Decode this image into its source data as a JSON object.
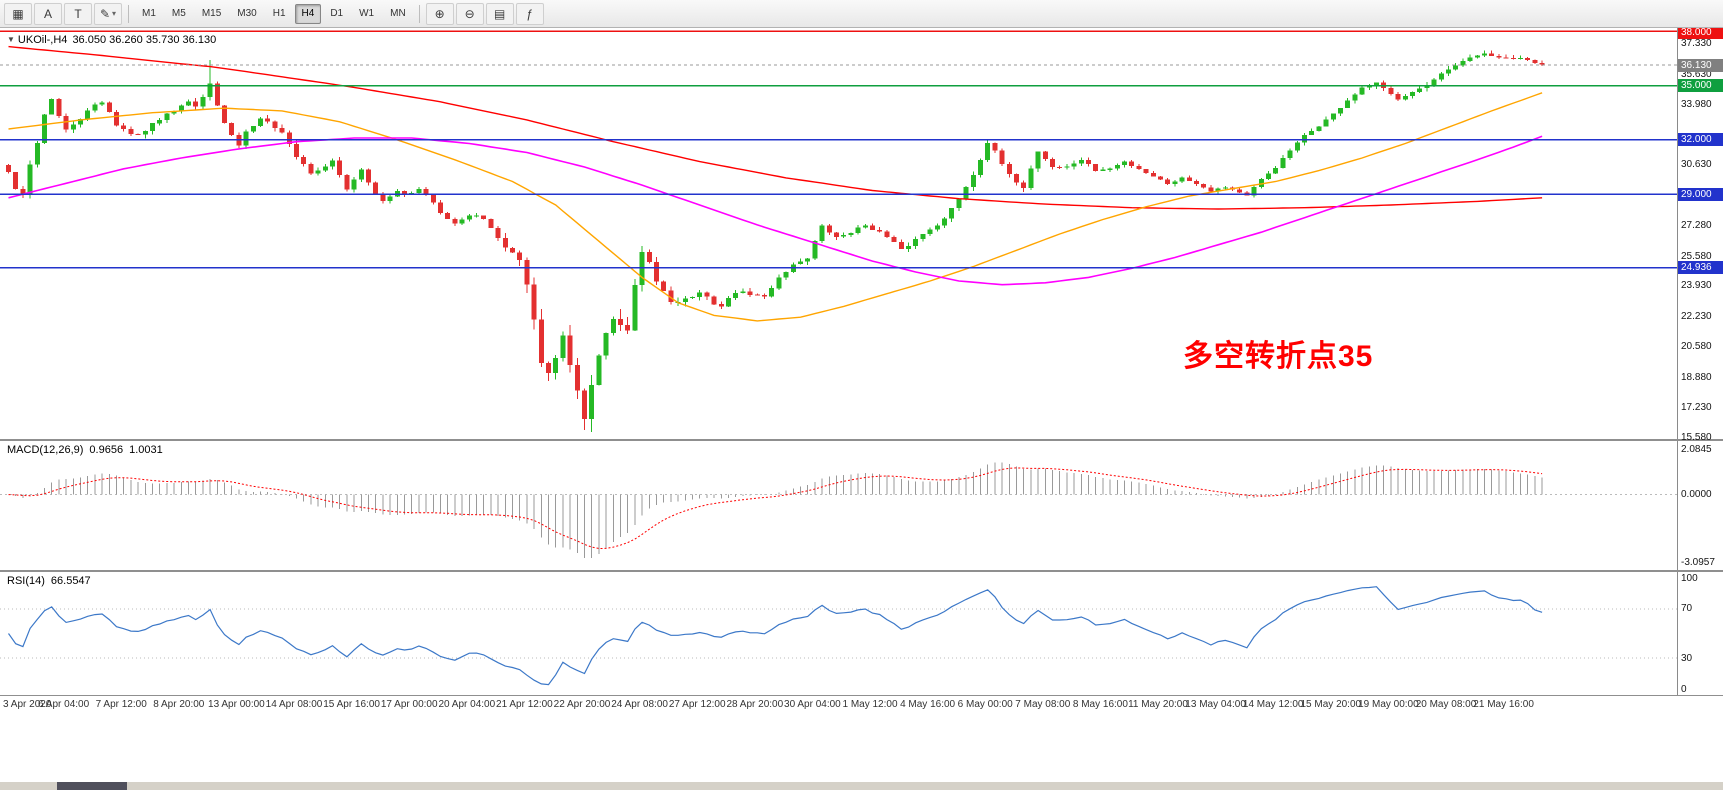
{
  "toolbar": {
    "timeframes": [
      "M1",
      "M5",
      "M15",
      "M30",
      "H1",
      "H4",
      "D1",
      "W1",
      "MN"
    ],
    "active_timeframe": "H4"
  },
  "icons": {
    "charts": "▦",
    "cursor": "A",
    "text": "T",
    "draw": "✎",
    "dropdown": "▾",
    "zoom_in": "⊕",
    "zoom_out": "⊖",
    "windows": "▤",
    "indicators": "ƒ"
  },
  "chart": {
    "title_triangle": "▼",
    "symbol_period": "UKOil-,H4",
    "ohlc_text": "36.050 36.260 35.730 36.130",
    "annotation_text": "多空转折点35",
    "current_price_label": "36.130",
    "y_ticks": [
      "37.330",
      "35.630",
      "33.980",
      "30.630",
      "27.280",
      "25.580",
      "23.930",
      "22.230",
      "20.580",
      "18.880",
      "17.230",
      "15.580"
    ],
    "hlines": [
      {
        "label": "38.000",
        "value": 38.0,
        "color": "#ee1111"
      },
      {
        "label": "35.000",
        "value": 35.0,
        "color": "#0f9f3f"
      },
      {
        "label": "32.000",
        "value": 32.0,
        "color": "#2233cc"
      },
      {
        "label": "29.000",
        "value": 29.0,
        "color": "#2233cc"
      },
      {
        "label": "24.936",
        "value": 24.936,
        "color": "#2233cc"
      }
    ]
  },
  "macd_panel": {
    "name": "MACD(12,26,9)",
    "value1": "0.9656",
    "value2": "1.0031",
    "ticks": [
      "2.0845",
      "0.0000",
      "-3.0957"
    ]
  },
  "rsi_panel": {
    "name": "RSI(14)",
    "value": "66.5547",
    "ticks": [
      "100",
      "70",
      "30",
      "0"
    ]
  },
  "colors": {
    "candle_up": "#25b925",
    "candle_down": "#e33030",
    "ma_red": "#ff0000",
    "ma_orange": "#ffa500",
    "ma_magenta": "#ff00ff",
    "macd_hist": "#9a9a9a",
    "macd_signal": "#ff0000",
    "rsi_line": "#3c78c8",
    "current_price_badge": "#808080",
    "level_dotted": "#bbbbbb"
  },
  "chart_data": {
    "type": "candlestick",
    "symbol": "UKOil-",
    "timeframe": "H4",
    "ohlc_display": {
      "open": 36.05,
      "high": 36.26,
      "low": 35.73,
      "close": 36.13
    },
    "last_price": 36.13,
    "horizontal_levels": [
      38.0,
      35.0,
      32.0,
      29.0,
      24.936
    ],
    "y_axis_ticks": [
      37.33,
      35.63,
      33.98,
      30.63,
      27.28,
      25.58,
      23.93,
      22.23,
      20.58,
      18.88,
      17.23,
      15.58
    ],
    "candle_count": 214,
    "x_labels": [
      "3 Apr 2020",
      "6 Apr 04:00",
      "7 Apr 12:00",
      "8 Apr 20:00",
      "13 Apr 00:00",
      "14 Apr 08:00",
      "15 Apr 16:00",
      "17 Apr 00:00",
      "20 Apr 04:00",
      "21 Apr 12:00",
      "22 Apr 20:00",
      "24 Apr 08:00",
      "27 Apr 12:00",
      "28 Apr 20:00",
      "30 Apr 04:00",
      "1 May 12:00",
      "4 May 16:00",
      "6 May 00:00",
      "7 May 08:00",
      "8 May 16:00",
      "11 May 20:00",
      "13 May 04:00",
      "14 May 12:00",
      "15 May 20:00",
      "19 May 00:00",
      "20 May 08:00",
      "21 May 16:00"
    ],
    "price_keypoints": [
      [
        0,
        30.2
      ],
      [
        1,
        29.3
      ],
      [
        2,
        28.9
      ],
      [
        3,
        30.6
      ],
      [
        4,
        31.9
      ],
      [
        5,
        33.4
      ],
      [
        6,
        34.3
      ],
      [
        7,
        33.3
      ],
      [
        8,
        32.5
      ],
      [
        10,
        33.2
      ],
      [
        12,
        33.9
      ],
      [
        13,
        34.1
      ],
      [
        14,
        33.6
      ],
      [
        15,
        32.8
      ],
      [
        17,
        32.3
      ],
      [
        19,
        32.5
      ],
      [
        21,
        33.2
      ],
      [
        23,
        33.7
      ],
      [
        25,
        34.2
      ],
      [
        26,
        33.9
      ],
      [
        27,
        34.3
      ],
      [
        28,
        35.1
      ],
      [
        29,
        34.0
      ],
      [
        30,
        33.0
      ],
      [
        31,
        32.2
      ],
      [
        32,
        31.7
      ],
      [
        33,
        32.4
      ],
      [
        35,
        33.2
      ],
      [
        36,
        33.1
      ],
      [
        38,
        32.4
      ],
      [
        40,
        31.1
      ],
      [
        42,
        30.2
      ],
      [
        44,
        30.5
      ],
      [
        45,
        30.8
      ],
      [
        47,
        29.3
      ],
      [
        49,
        30.4
      ],
      [
        51,
        29.0
      ],
      [
        52,
        28.6
      ],
      [
        54,
        29.1
      ],
      [
        56,
        29.0
      ],
      [
        57,
        29.3
      ],
      [
        59,
        28.6
      ],
      [
        60,
        28.0
      ],
      [
        62,
        27.4
      ],
      [
        64,
        27.8
      ],
      [
        66,
        27.7
      ],
      [
        68,
        26.5
      ],
      [
        70,
        25.7
      ],
      [
        71,
        25.5
      ],
      [
        72,
        24.0
      ],
      [
        73,
        21.9
      ],
      [
        74,
        19.9
      ],
      [
        75,
        18.8
      ],
      [
        76,
        19.9
      ],
      [
        77,
        20.9
      ],
      [
        78,
        19.6
      ],
      [
        79,
        18.1
      ],
      [
        80,
        16.7
      ],
      [
        81,
        18.4
      ],
      [
        82,
        20.2
      ],
      [
        84,
        22.2
      ],
      [
        85,
        21.8
      ],
      [
        86,
        21.3
      ],
      [
        87,
        23.9
      ],
      [
        88,
        25.6
      ],
      [
        89,
        25.1
      ],
      [
        90,
        24.2
      ],
      [
        92,
        23.1
      ],
      [
        94,
        23.2
      ],
      [
        96,
        23.5
      ],
      [
        98,
        23.0
      ],
      [
        99,
        22.8
      ],
      [
        101,
        23.6
      ],
      [
        103,
        23.5
      ],
      [
        105,
        23.3
      ],
      [
        107,
        24.4
      ],
      [
        109,
        25.1
      ],
      [
        111,
        25.5
      ],
      [
        112,
        26.4
      ],
      [
        113,
        27.2
      ],
      [
        115,
        26.6
      ],
      [
        117,
        26.9
      ],
      [
        119,
        27.3
      ],
      [
        121,
        26.9
      ],
      [
        123,
        26.3
      ],
      [
        124,
        25.9
      ],
      [
        126,
        26.5
      ],
      [
        128,
        27.1
      ],
      [
        130,
        27.6
      ],
      [
        132,
        28.8
      ],
      [
        134,
        30.1
      ],
      [
        136,
        31.9
      ],
      [
        137,
        31.3
      ],
      [
        139,
        30.0
      ],
      [
        141,
        29.4
      ],
      [
        143,
        31.4
      ],
      [
        145,
        30.5
      ],
      [
        147,
        30.5
      ],
      [
        149,
        30.9
      ],
      [
        151,
        30.3
      ],
      [
        153,
        30.4
      ],
      [
        155,
        30.8
      ],
      [
        157,
        30.4
      ],
      [
        159,
        30.0
      ],
      [
        161,
        29.6
      ],
      [
        163,
        29.9
      ],
      [
        165,
        29.6
      ],
      [
        167,
        29.2
      ],
      [
        169,
        29.4
      ],
      [
        171,
        29.1
      ],
      [
        172,
        28.9
      ],
      [
        174,
        29.8
      ],
      [
        176,
        30.5
      ],
      [
        178,
        31.4
      ],
      [
        180,
        32.2
      ],
      [
        182,
        32.8
      ],
      [
        184,
        33.4
      ],
      [
        186,
        34.2
      ],
      [
        188,
        34.8
      ],
      [
        190,
        35.1
      ],
      [
        192,
        34.5
      ],
      [
        193,
        34.3
      ],
      [
        195,
        34.7
      ],
      [
        197,
        35.0
      ],
      [
        199,
        35.6
      ],
      [
        201,
        36.1
      ],
      [
        203,
        36.5
      ],
      [
        205,
        36.8
      ],
      [
        207,
        36.5
      ],
      [
        209,
        36.5
      ],
      [
        211,
        36.4
      ],
      [
        213,
        36.13
      ]
    ],
    "volatility_keypoints": [
      [
        0,
        0.5
      ],
      [
        20,
        0.45
      ],
      [
        40,
        0.4
      ],
      [
        60,
        0.3
      ],
      [
        68,
        0.45
      ],
      [
        72,
        1.1
      ],
      [
        76,
        1.5
      ],
      [
        80,
        1.7
      ],
      [
        84,
        1.2
      ],
      [
        88,
        0.9
      ],
      [
        92,
        0.6
      ],
      [
        100,
        0.4
      ],
      [
        120,
        0.35
      ],
      [
        133,
        0.5
      ],
      [
        140,
        0.45
      ],
      [
        150,
        0.3
      ],
      [
        170,
        0.25
      ],
      [
        180,
        0.35
      ],
      [
        190,
        0.4
      ],
      [
        200,
        0.35
      ],
      [
        213,
        0.3
      ]
    ],
    "special_low": {
      "index": 80,
      "price": 15.98
    },
    "special_high": {
      "index": 28,
      "price": 36.42
    },
    "ma_lines": [
      {
        "name": "slow-ma-red",
        "points": [
          [
            0,
            37.15
          ],
          [
            12,
            36.7
          ],
          [
            24,
            36.2
          ],
          [
            28,
            36.05
          ],
          [
            36,
            35.6
          ],
          [
            48,
            34.9
          ],
          [
            60,
            34.1
          ],
          [
            72,
            33.1
          ],
          [
            84,
            31.9
          ],
          [
            96,
            30.8
          ],
          [
            108,
            29.9
          ],
          [
            120,
            29.2
          ],
          [
            132,
            28.75
          ],
          [
            144,
            28.45
          ],
          [
            156,
            28.25
          ],
          [
            168,
            28.18
          ],
          [
            180,
            28.25
          ],
          [
            192,
            28.4
          ],
          [
            204,
            28.6
          ],
          [
            213,
            28.8
          ]
        ]
      },
      {
        "name": "mid-ma-orange",
        "points": [
          [
            0,
            32.6
          ],
          [
            10,
            33.1
          ],
          [
            20,
            33.5
          ],
          [
            30,
            33.75
          ],
          [
            38,
            33.6
          ],
          [
            46,
            33.0
          ],
          [
            54,
            32.0
          ],
          [
            62,
            30.9
          ],
          [
            70,
            29.7
          ],
          [
            76,
            28.4
          ],
          [
            82,
            26.4
          ],
          [
            88,
            24.4
          ],
          [
            93,
            23.0
          ],
          [
            98,
            22.3
          ],
          [
            104,
            22.0
          ],
          [
            110,
            22.2
          ],
          [
            116,
            22.8
          ],
          [
            122,
            23.5
          ],
          [
            128,
            24.2
          ],
          [
            134,
            25.0
          ],
          [
            140,
            25.9
          ],
          [
            146,
            26.8
          ],
          [
            152,
            27.6
          ],
          [
            158,
            28.3
          ],
          [
            164,
            28.9
          ],
          [
            170,
            29.3
          ],
          [
            176,
            29.7
          ],
          [
            182,
            30.3
          ],
          [
            188,
            31.0
          ],
          [
            194,
            31.8
          ],
          [
            200,
            32.7
          ],
          [
            206,
            33.6
          ],
          [
            213,
            34.6
          ]
        ]
      },
      {
        "name": "slow-ma-magenta",
        "points": [
          [
            0,
            28.8
          ],
          [
            8,
            29.6
          ],
          [
            16,
            30.4
          ],
          [
            24,
            31.0
          ],
          [
            32,
            31.5
          ],
          [
            40,
            31.9
          ],
          [
            48,
            32.1
          ],
          [
            56,
            32.1
          ],
          [
            64,
            31.8
          ],
          [
            72,
            31.3
          ],
          [
            80,
            30.5
          ],
          [
            88,
            29.5
          ],
          [
            96,
            28.4
          ],
          [
            104,
            27.3
          ],
          [
            112,
            26.3
          ],
          [
            120,
            25.3
          ],
          [
            126,
            24.7
          ],
          [
            132,
            24.2
          ],
          [
            138,
            24.0
          ],
          [
            144,
            24.1
          ],
          [
            150,
            24.4
          ],
          [
            156,
            24.9
          ],
          [
            162,
            25.5
          ],
          [
            168,
            26.2
          ],
          [
            174,
            26.9
          ],
          [
            180,
            27.7
          ],
          [
            186,
            28.5
          ],
          [
            192,
            29.3
          ],
          [
            198,
            30.1
          ],
          [
            204,
            30.9
          ],
          [
            209,
            31.6
          ],
          [
            213,
            32.2
          ]
        ]
      }
    ],
    "macd": {
      "fast": 12,
      "slow": 26,
      "signal": 9,
      "current_values": [
        0.9656,
        1.0031
      ],
      "axis_range": [
        2.0845,
        -3.0957
      ]
    },
    "rsi": {
      "period": 14,
      "current_value": 66.5547,
      "levels": [
        70,
        30
      ],
      "axis": [
        100,
        70,
        30,
        0
      ]
    }
  }
}
